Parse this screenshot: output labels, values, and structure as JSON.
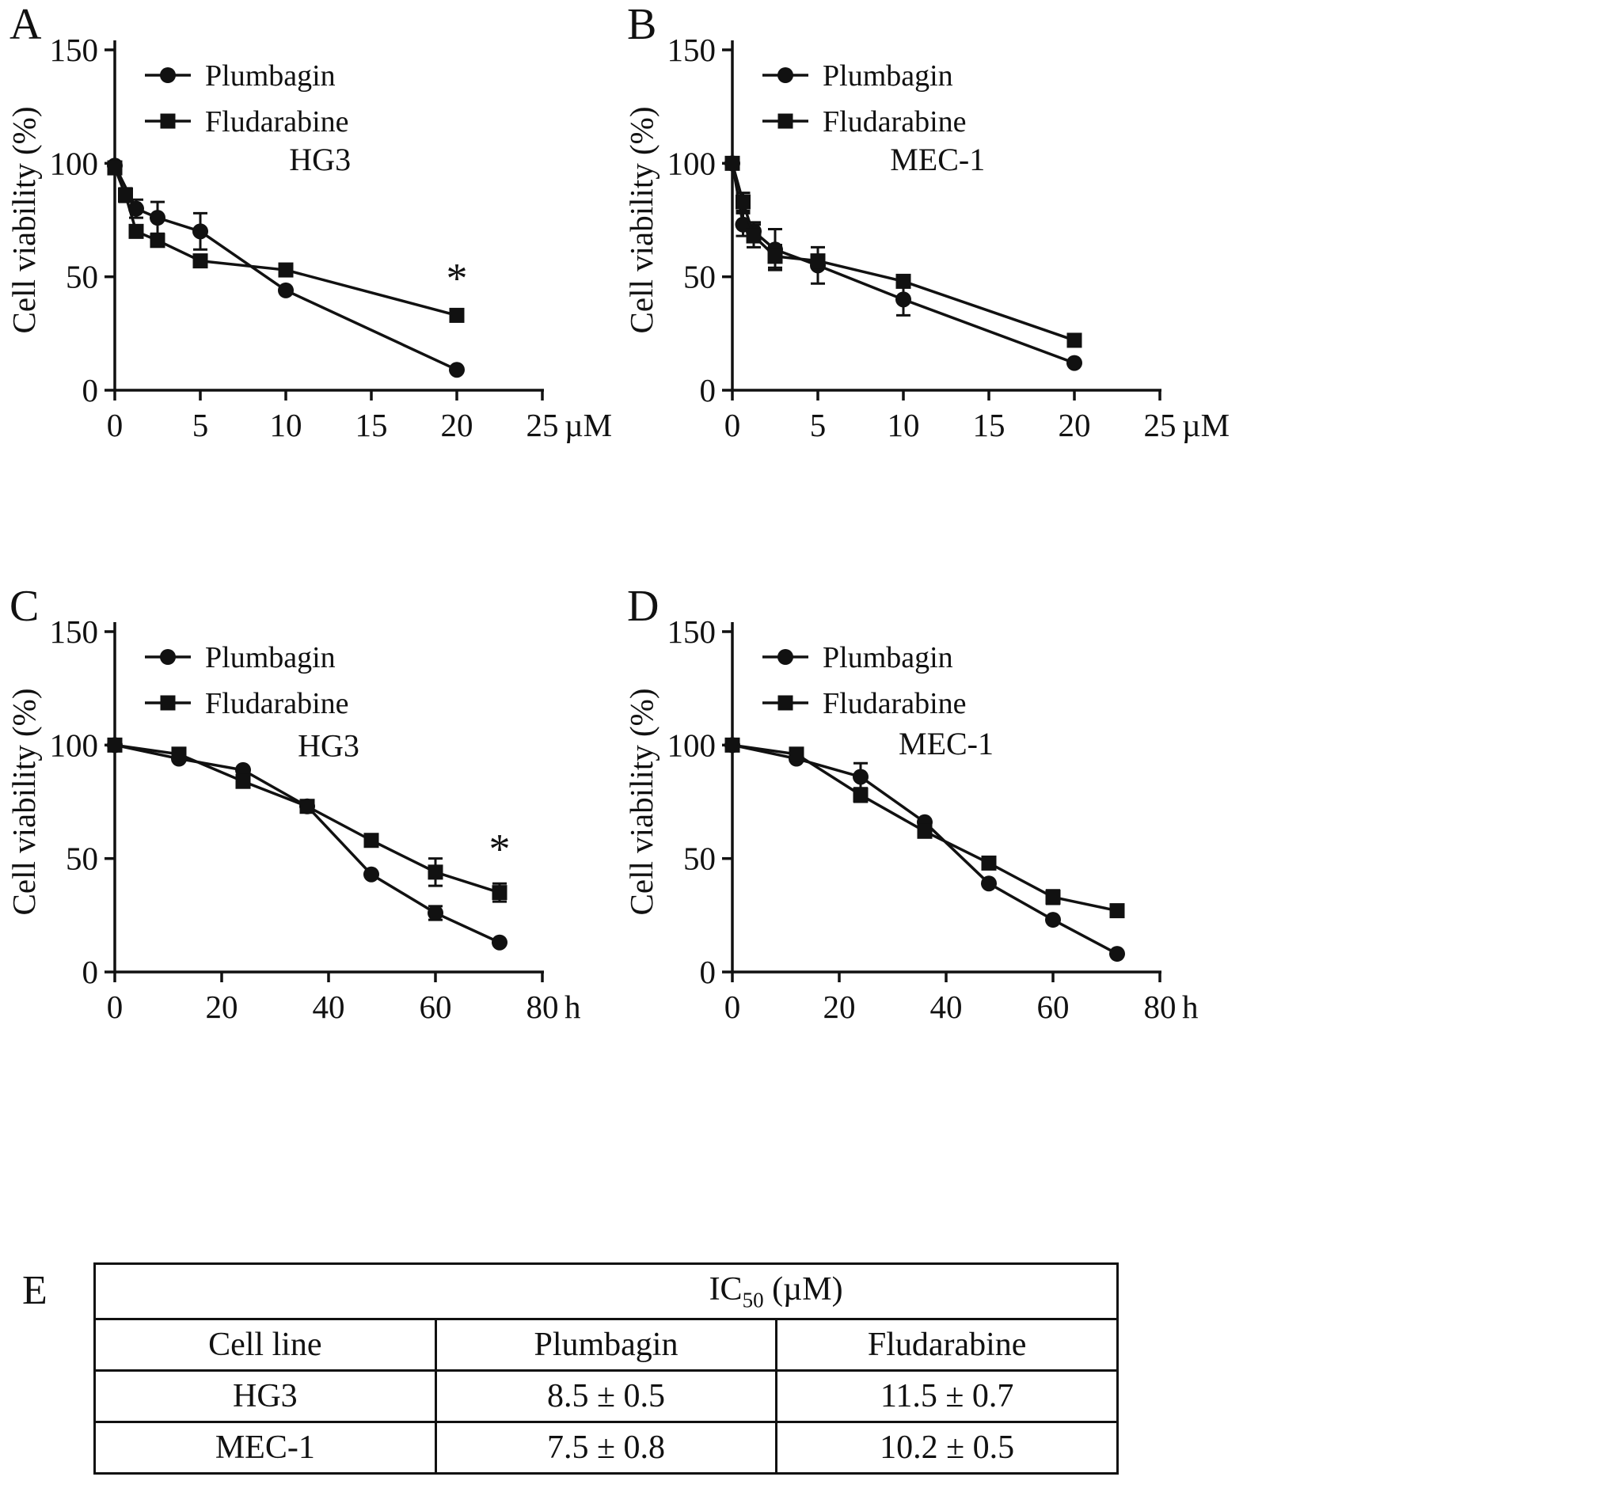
{
  "figure": {
    "background": "#ffffff",
    "ink": "#111111"
  },
  "chart_data": [
    {
      "type": "line",
      "panel": "A",
      "title": "HG3",
      "ylabel": "Cell viability (%)",
      "x_unit": "µM",
      "xlim": [
        0,
        25
      ],
      "ylim": [
        0,
        150
      ],
      "xticks": [
        0,
        5,
        10,
        15,
        20,
        25
      ],
      "yticks": [
        0,
        50,
        100,
        150
      ],
      "grid": false,
      "legend_position": "top-left",
      "title_x": 12,
      "title_y": 97,
      "annotation": {
        "text": "*",
        "x": 20,
        "y": 43
      },
      "series": [
        {
          "name": "Plumbagin",
          "marker": "circle",
          "points": [
            [
              0,
              99,
              null
            ],
            [
              1.25,
              80,
              4
            ],
            [
              2.5,
              76,
              7
            ],
            [
              5,
              70,
              8
            ],
            [
              10,
              44,
              null
            ],
            [
              20,
              9,
              null
            ]
          ]
        },
        {
          "name": "Fludarabine",
          "marker": "square",
          "points": [
            [
              0,
              98,
              null
            ],
            [
              0.625,
              86,
              3
            ],
            [
              1.25,
              70,
              null
            ],
            [
              2.5,
              66,
              null
            ],
            [
              5,
              57,
              null
            ],
            [
              10,
              53,
              null
            ],
            [
              20,
              33,
              null
            ]
          ]
        }
      ]
    },
    {
      "type": "line",
      "panel": "B",
      "title": "MEC-1",
      "ylabel": "Cell viability (%)",
      "x_unit": "µM",
      "xlim": [
        0,
        25
      ],
      "ylim": [
        0,
        150
      ],
      "xticks": [
        0,
        5,
        10,
        15,
        20,
        25
      ],
      "yticks": [
        0,
        50,
        100,
        150
      ],
      "grid": false,
      "legend_position": "top-left",
      "title_x": 12,
      "title_y": 97,
      "annotation": null,
      "series": [
        {
          "name": "Plumbagin",
          "marker": "circle",
          "points": [
            [
              0,
              100,
              null
            ],
            [
              0.625,
              73,
              5
            ],
            [
              1.25,
              70,
              4
            ],
            [
              2.5,
              62,
              9
            ],
            [
              5,
              55,
              8
            ],
            [
              10,
              40,
              7
            ],
            [
              20,
              12,
              null
            ]
          ]
        },
        {
          "name": "Fludarabine",
          "marker": "square",
          "points": [
            [
              0,
              100,
              null
            ],
            [
              0.625,
              83,
              4
            ],
            [
              1.25,
              68,
              5
            ],
            [
              2.5,
              59,
              5
            ],
            [
              5,
              57,
              null
            ],
            [
              10,
              48,
              null
            ],
            [
              20,
              22,
              null
            ]
          ]
        }
      ]
    },
    {
      "type": "line",
      "panel": "C",
      "title": "HG3",
      "ylabel": "Cell viability (%)",
      "x_unit": "h",
      "xlim": [
        0,
        80
      ],
      "ylim": [
        0,
        150
      ],
      "xticks": [
        0,
        20,
        40,
        60,
        80
      ],
      "yticks": [
        0,
        50,
        100,
        150
      ],
      "grid": false,
      "legend_position": "top-left",
      "title_x": 40,
      "title_y": 95,
      "annotation": {
        "text": "*",
        "x": 72,
        "y": 48
      },
      "series": [
        {
          "name": "Plumbagin",
          "marker": "circle",
          "points": [
            [
              0,
              100,
              null
            ],
            [
              12,
              94,
              null
            ],
            [
              24,
              89,
              null
            ],
            [
              36,
              73,
              null
            ],
            [
              48,
              43,
              null
            ],
            [
              60,
              26,
              3
            ],
            [
              72,
              13,
              null
            ]
          ]
        },
        {
          "name": "Fludarabine",
          "marker": "square",
          "points": [
            [
              0,
              100,
              null
            ],
            [
              12,
              96,
              null
            ],
            [
              24,
              84,
              null
            ],
            [
              36,
              73,
              null
            ],
            [
              48,
              58,
              null
            ],
            [
              60,
              44,
              6
            ],
            [
              72,
              35,
              4
            ]
          ]
        }
      ]
    },
    {
      "type": "line",
      "panel": "D",
      "title": "MEC-1",
      "ylabel": "Cell viability (%)",
      "x_unit": "h",
      "xlim": [
        0,
        80
      ],
      "ylim": [
        0,
        150
      ],
      "xticks": [
        0,
        20,
        40,
        60,
        80
      ],
      "yticks": [
        0,
        50,
        100,
        150
      ],
      "grid": false,
      "legend_position": "top-left",
      "title_x": 40,
      "title_y": 96,
      "annotation": null,
      "series": [
        {
          "name": "Plumbagin",
          "marker": "circle",
          "points": [
            [
              0,
              100,
              null
            ],
            [
              12,
              94,
              null
            ],
            [
              24,
              86,
              6
            ],
            [
              36,
              66,
              null
            ],
            [
              48,
              39,
              null
            ],
            [
              60,
              23,
              null
            ],
            [
              72,
              8,
              null
            ]
          ]
        },
        {
          "name": "Fludarabine",
          "marker": "square",
          "points": [
            [
              0,
              100,
              null
            ],
            [
              12,
              96,
              null
            ],
            [
              24,
              78,
              3
            ],
            [
              36,
              62,
              null
            ],
            [
              48,
              48,
              null
            ],
            [
              60,
              33,
              3
            ],
            [
              72,
              27,
              null
            ]
          ]
        }
      ]
    }
  ],
  "table": {
    "panel": "E",
    "ic50": {
      "prefix": "IC",
      "sub": "50",
      "suffix": " (µM)"
    },
    "columns": [
      "Cell line",
      "Plumbagin",
      "Fludarabine"
    ],
    "rows": [
      [
        "HG3",
        "8.5 ± 0.5",
        "11.5 ± 0.7"
      ],
      [
        "MEC-1",
        "7.5 ± 0.8",
        "10.2 ± 0.5"
      ]
    ]
  }
}
